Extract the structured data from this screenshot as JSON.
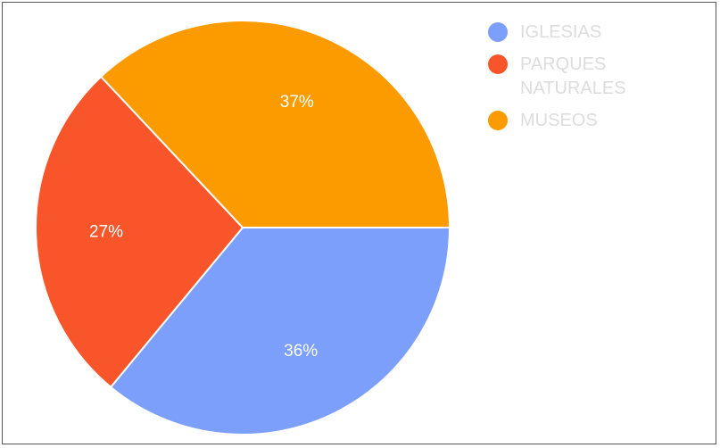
{
  "chart_data": {
    "type": "pie",
    "categories": [
      "IGLESIAS",
      "PARQUES NATURALES",
      "MUSEOS"
    ],
    "values": [
      36,
      27,
      37
    ],
    "value_labels": [
      "36%",
      "27%",
      "37%"
    ],
    "colors": [
      "#7b9ffb",
      "#f9552a",
      "#fb9b00"
    ],
    "legend_position": "top-right",
    "title": ""
  }
}
